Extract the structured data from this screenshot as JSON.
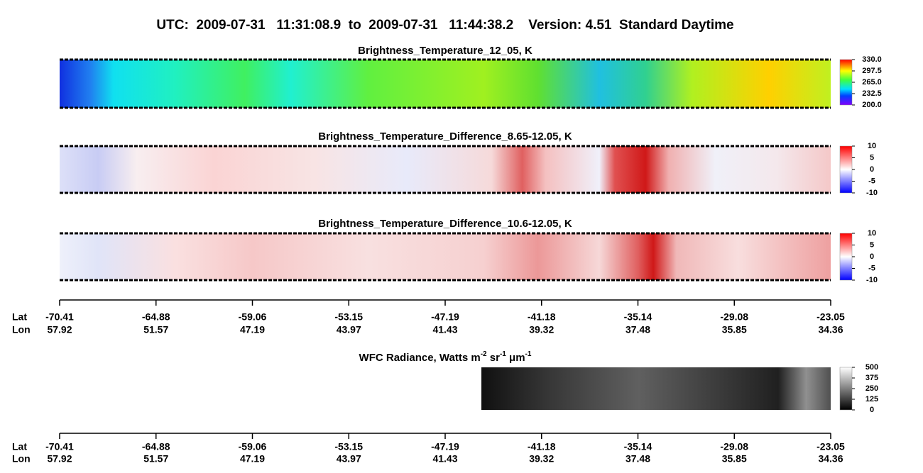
{
  "header": {
    "title": "UTC:  2009-07-31   11:31:08.9  to  2009-07-31   11:44:38.2    Version: 4.51  Standard Daytime"
  },
  "panels": [
    {
      "title": "Brightness_Temperature_12_05, K",
      "colorbar": [
        "330.0",
        "297.5",
        "265.0",
        "232.5",
        "200.0"
      ]
    },
    {
      "title": "Brightness_Temperature_Difference_8.65-12.05, K",
      "colorbar": [
        "10",
        "5",
        "0",
        "-5",
        "-10"
      ]
    },
    {
      "title": "Brightness_Temperature_Difference_10.6-12.05, K",
      "colorbar": [
        "10",
        "5",
        "0",
        "-5",
        "-10"
      ]
    },
    {
      "title_parts": [
        "WFC Radiance, Watts m",
        "-2",
        " sr",
        "-1",
        " μm",
        "-1"
      ],
      "colorbar": [
        "500",
        "375",
        "250",
        "125",
        "0"
      ]
    }
  ],
  "axes": [
    {
      "lat_label": "Lat",
      "lon_label": "Lon",
      "lat": [
        "-70.41",
        "-64.88",
        "-59.06",
        "-53.15",
        "-47.19",
        "-41.18",
        "-35.14",
        "-29.08",
        "-23.05"
      ],
      "lon": [
        "57.92",
        "51.57",
        "47.19",
        "43.97",
        "41.43",
        "39.32",
        "37.48",
        "35.85",
        "34.36"
      ]
    },
    {
      "lat_label": "Lat",
      "lon_label": "Lon",
      "lat": [
        "-70.41",
        "-64.88",
        "-59.06",
        "-53.15",
        "-47.19",
        "-41.18",
        "-35.14",
        "-29.08",
        "-23.05"
      ],
      "lon": [
        "57.92",
        "51.57",
        "47.19",
        "43.97",
        "41.43",
        "39.32",
        "37.48",
        "35.85",
        "34.36"
      ]
    }
  ]
}
